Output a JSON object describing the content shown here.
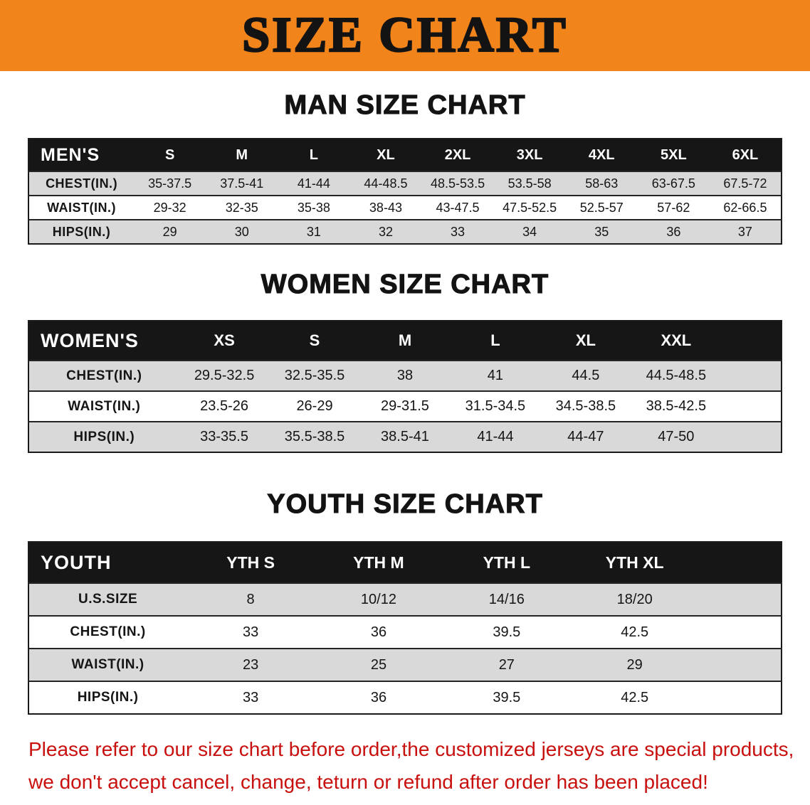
{
  "banner": {
    "title": "SIZE CHART"
  },
  "colors": {
    "banner_bg": "#F2841C",
    "table_header_bg": "#161616",
    "row_alt_bg": "#D9D9D9",
    "note_color": "#C8100E",
    "text_color": "#131313"
  },
  "chart_data": [
    {
      "type": "table",
      "title": "MAN SIZE CHART",
      "columns": [
        "MEN'S",
        "S",
        "M",
        "L",
        "XL",
        "2XL",
        "3XL",
        "4XL",
        "5XL",
        "6XL"
      ],
      "rows": [
        [
          "CHEST(IN.)",
          "35-37.5",
          "37.5-41",
          "41-44",
          "44-48.5",
          "48.5-53.5",
          "53.5-58",
          "58-63",
          "63-67.5",
          "67.5-72"
        ],
        [
          "WAIST(IN.)",
          "29-32",
          "32-35",
          "35-38",
          "38-43",
          "43-47.5",
          "47.5-52.5",
          "52.5-57",
          "57-62",
          "62-66.5"
        ],
        [
          "HIPS(IN.)",
          "29",
          "30",
          "31",
          "32",
          "33",
          "34",
          "35",
          "36",
          "37"
        ]
      ]
    },
    {
      "type": "table",
      "title": "WOMEN SIZE CHART",
      "columns": [
        "WOMEN'S",
        "XS",
        "S",
        "M",
        "L",
        "XL",
        "XXL"
      ],
      "rows": [
        [
          "CHEST(IN.)",
          "29.5-32.5",
          "32.5-35.5",
          "38",
          "41",
          "44.5",
          "44.5-48.5"
        ],
        [
          "WAIST(IN.)",
          "23.5-26",
          "26-29",
          "29-31.5",
          "31.5-34.5",
          "34.5-38.5",
          "38.5-42.5"
        ],
        [
          "HIPS(IN.)",
          "33-35.5",
          "35.5-38.5",
          "38.5-41",
          "41-44",
          "44-47",
          "47-50"
        ]
      ]
    },
    {
      "type": "table",
      "title": "YOUTH SIZE CHART",
      "columns": [
        "YOUTH",
        "YTH S",
        "YTH M",
        "YTH L",
        "YTH XL"
      ],
      "rows": [
        [
          "U.S.SIZE",
          "8",
          "10/12",
          "14/16",
          "18/20"
        ],
        [
          "CHEST(IN.)",
          "33",
          "36",
          "39.5",
          "42.5"
        ],
        [
          "WAIST(IN.)",
          "23",
          "25",
          "27",
          "29"
        ],
        [
          "HIPS(IN.)",
          "33",
          "36",
          "39.5",
          "42.5"
        ]
      ]
    }
  ],
  "note": {
    "line1": "Please refer to our size chart before order,the customized jerseys are special products,",
    "line2": "we don't accept cancel, change, teturn or refund after order has been placed!"
  }
}
